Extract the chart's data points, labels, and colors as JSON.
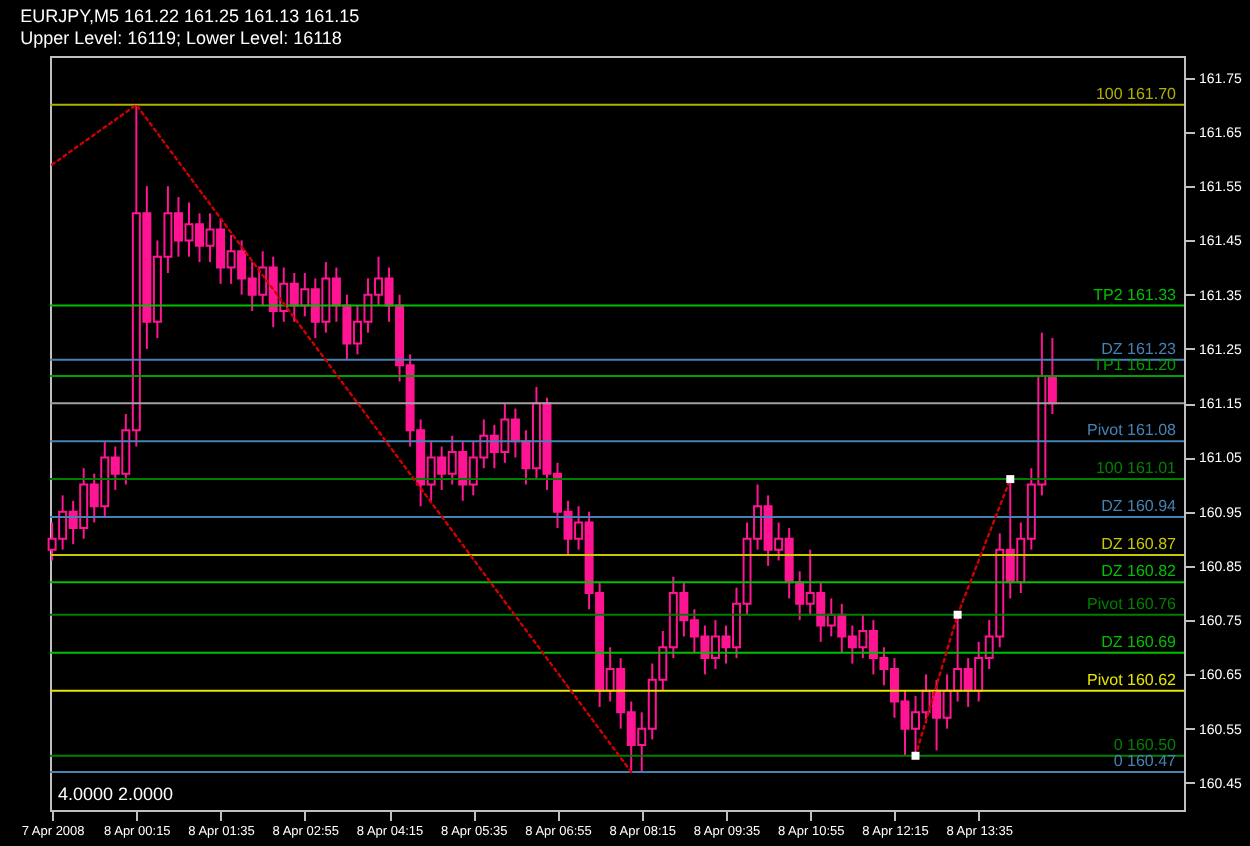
{
  "chart_data": {
    "type": "candlestick",
    "title": "EURJPY,M5  161.22 161.25 161.13 161.15",
    "subtitle": "Upper Level: 16119; Lower Level: 16118",
    "color": "#ff1493",
    "x": [
      "2008-04-07T22:55",
      "2008-04-07T23:05",
      "2008-04-07T23:15",
      "2008-04-07T23:25",
      "2008-04-07T23:35",
      "2008-04-07T23:45",
      "2008-04-07T23:55",
      "2008-04-08T00:05",
      "2008-04-08T00:15",
      "2008-04-08T00:25",
      "2008-04-08T00:35",
      "2008-04-08T00:45",
      "2008-04-08T00:55",
      "2008-04-08T01:05",
      "2008-04-08T01:15",
      "2008-04-08T01:25",
      "2008-04-08T01:35",
      "2008-04-08T01:45",
      "2008-04-08T01:55",
      "2008-04-08T02:05",
      "2008-04-08T02:15",
      "2008-04-08T02:25",
      "2008-04-08T02:35",
      "2008-04-08T02:45",
      "2008-04-08T02:55",
      "2008-04-08T03:05",
      "2008-04-08T03:15",
      "2008-04-08T03:25",
      "2008-04-08T03:35",
      "2008-04-08T03:45",
      "2008-04-08T03:55",
      "2008-04-08T04:05",
      "2008-04-08T04:15",
      "2008-04-08T04:25",
      "2008-04-08T04:35",
      "2008-04-08T04:45",
      "2008-04-08T04:55",
      "2008-04-08T05:05",
      "2008-04-08T05:15",
      "2008-04-08T05:25",
      "2008-04-08T05:35",
      "2008-04-08T05:45",
      "2008-04-08T05:55",
      "2008-04-08T06:05",
      "2008-04-08T06:15",
      "2008-04-08T06:25",
      "2008-04-08T06:35",
      "2008-04-08T06:45",
      "2008-04-08T06:55",
      "2008-04-08T07:05",
      "2008-04-08T07:15",
      "2008-04-08T07:25",
      "2008-04-08T07:35",
      "2008-04-08T07:45",
      "2008-04-08T07:55",
      "2008-04-08T08:05",
      "2008-04-08T08:15",
      "2008-04-08T08:25",
      "2008-04-08T08:35",
      "2008-04-08T08:45",
      "2008-04-08T08:55",
      "2008-04-08T09:05",
      "2008-04-08T09:15",
      "2008-04-08T09:25",
      "2008-04-08T09:35",
      "2008-04-08T09:45",
      "2008-04-08T09:55",
      "2008-04-08T10:05",
      "2008-04-08T10:15",
      "2008-04-08T10:25",
      "2008-04-08T10:35",
      "2008-04-08T10:45",
      "2008-04-08T10:55",
      "2008-04-08T11:05",
      "2008-04-08T11:15",
      "2008-04-08T11:25",
      "2008-04-08T11:35",
      "2008-04-08T11:45",
      "2008-04-08T11:55",
      "2008-04-08T12:05",
      "2008-04-08T12:15",
      "2008-04-08T12:25",
      "2008-04-08T12:35",
      "2008-04-08T12:45",
      "2008-04-08T12:55",
      "2008-04-08T13:05",
      "2008-04-08T13:15",
      "2008-04-08T13:25",
      "2008-04-08T13:35",
      "2008-04-08T13:45",
      "2008-04-08T13:55",
      "2008-04-08T14:05",
      "2008-04-08T14:15",
      "2008-04-08T14:25",
      "2008-04-08T14:35",
      "2008-04-08T14:45"
    ],
    "ohlc": [
      [
        160.88,
        160.93,
        160.86,
        160.9
      ],
      [
        160.9,
        160.98,
        160.88,
        160.95
      ],
      [
        160.95,
        160.97,
        160.89,
        160.92
      ],
      [
        160.92,
        161.03,
        160.9,
        161.0
      ],
      [
        161.0,
        161.02,
        160.93,
        160.96
      ],
      [
        160.96,
        161.08,
        160.94,
        161.05
      ],
      [
        161.05,
        161.07,
        160.99,
        161.02
      ],
      [
        161.02,
        161.13,
        161.0,
        161.1
      ],
      [
        161.1,
        161.7,
        161.07,
        161.5
      ],
      [
        161.5,
        161.55,
        161.25,
        161.3
      ],
      [
        161.3,
        161.45,
        161.27,
        161.42
      ],
      [
        161.42,
        161.55,
        161.39,
        161.5
      ],
      [
        161.5,
        161.53,
        161.42,
        161.45
      ],
      [
        161.45,
        161.52,
        161.42,
        161.48
      ],
      [
        161.48,
        161.5,
        161.41,
        161.44
      ],
      [
        161.44,
        161.5,
        161.41,
        161.47
      ],
      [
        161.47,
        161.49,
        161.37,
        161.4
      ],
      [
        161.4,
        161.46,
        161.37,
        161.43
      ],
      [
        161.43,
        161.45,
        161.35,
        161.38
      ],
      [
        161.38,
        161.41,
        161.32,
        161.35
      ],
      [
        161.35,
        161.43,
        161.33,
        161.4
      ],
      [
        161.4,
        161.42,
        161.29,
        161.32
      ],
      [
        161.32,
        161.4,
        161.3,
        161.37
      ],
      [
        161.37,
        161.39,
        161.3,
        161.33
      ],
      [
        161.33,
        161.39,
        161.31,
        161.36
      ],
      [
        161.36,
        161.38,
        161.27,
        161.3
      ],
      [
        161.3,
        161.41,
        161.28,
        161.38
      ],
      [
        161.38,
        161.4,
        161.3,
        161.33
      ],
      [
        161.33,
        161.35,
        161.23,
        161.26
      ],
      [
        161.26,
        161.33,
        161.24,
        161.3
      ],
      [
        161.3,
        161.38,
        161.28,
        161.35
      ],
      [
        161.35,
        161.42,
        161.33,
        161.38
      ],
      [
        161.38,
        161.4,
        161.3,
        161.33
      ],
      [
        161.33,
        161.35,
        161.19,
        161.22
      ],
      [
        161.22,
        161.24,
        161.07,
        161.1
      ],
      [
        161.1,
        161.12,
        160.96,
        161.0
      ],
      [
        161.0,
        161.08,
        160.97,
        161.05
      ],
      [
        161.05,
        161.07,
        160.99,
        161.02
      ],
      [
        161.02,
        161.09,
        161.0,
        161.06
      ],
      [
        161.06,
        161.08,
        160.97,
        161.0
      ],
      [
        161.0,
        161.08,
        160.98,
        161.05
      ],
      [
        161.05,
        161.12,
        161.03,
        161.09
      ],
      [
        161.09,
        161.11,
        161.03,
        161.06
      ],
      [
        161.06,
        161.15,
        161.04,
        161.12
      ],
      [
        161.12,
        161.14,
        161.05,
        161.08
      ],
      [
        161.08,
        161.1,
        161.0,
        161.03
      ],
      [
        161.03,
        161.18,
        161.01,
        161.15
      ],
      [
        161.15,
        161.16,
        160.99,
        161.02
      ],
      [
        161.02,
        161.04,
        160.92,
        160.95
      ],
      [
        160.95,
        160.97,
        160.87,
        160.9
      ],
      [
        160.9,
        160.96,
        160.88,
        160.93
      ],
      [
        160.93,
        160.95,
        160.77,
        160.8
      ],
      [
        160.8,
        160.82,
        160.59,
        160.62
      ],
      [
        160.62,
        160.7,
        160.6,
        160.66
      ],
      [
        160.66,
        160.68,
        160.55,
        160.58
      ],
      [
        160.58,
        160.6,
        160.47,
        160.52
      ],
      [
        160.52,
        160.58,
        160.47,
        160.55
      ],
      [
        160.55,
        160.67,
        160.53,
        160.64
      ],
      [
        160.64,
        160.73,
        160.62,
        160.7
      ],
      [
        160.7,
        160.83,
        160.68,
        160.8
      ],
      [
        160.8,
        160.82,
        160.72,
        160.75
      ],
      [
        160.75,
        160.77,
        160.69,
        160.72
      ],
      [
        160.72,
        160.74,
        160.65,
        160.68
      ],
      [
        160.68,
        160.75,
        160.66,
        160.72
      ],
      [
        160.72,
        160.74,
        160.67,
        160.7
      ],
      [
        160.7,
        160.81,
        160.68,
        160.78
      ],
      [
        160.78,
        160.93,
        160.76,
        160.9
      ],
      [
        160.9,
        161.0,
        160.88,
        160.96
      ],
      [
        160.96,
        160.98,
        160.85,
        160.88
      ],
      [
        160.88,
        160.93,
        160.86,
        160.9
      ],
      [
        160.9,
        160.92,
        160.79,
        160.82
      ],
      [
        160.82,
        160.84,
        160.75,
        160.78
      ],
      [
        160.78,
        160.88,
        160.76,
        160.8
      ],
      [
        160.8,
        160.82,
        160.71,
        160.74
      ],
      [
        160.74,
        160.79,
        160.72,
        160.76
      ],
      [
        160.76,
        160.78,
        160.69,
        160.72
      ],
      [
        160.72,
        160.74,
        160.67,
        160.7
      ],
      [
        160.7,
        160.76,
        160.68,
        160.73
      ],
      [
        160.73,
        160.75,
        160.65,
        160.68
      ],
      [
        160.68,
        160.7,
        160.63,
        160.66
      ],
      [
        160.66,
        160.68,
        160.57,
        160.6
      ],
      [
        160.6,
        160.62,
        160.5,
        160.55
      ],
      [
        160.55,
        160.61,
        160.5,
        160.58
      ],
      [
        160.58,
        160.65,
        160.56,
        160.62
      ],
      [
        160.62,
        160.64,
        160.51,
        160.57
      ],
      [
        160.57,
        160.65,
        160.55,
        160.62
      ],
      [
        160.62,
        160.76,
        160.6,
        160.66
      ],
      [
        160.66,
        160.68,
        160.59,
        160.62
      ],
      [
        160.62,
        160.71,
        160.6,
        160.68
      ],
      [
        160.68,
        160.75,
        160.66,
        160.72
      ],
      [
        160.72,
        160.91,
        160.7,
        160.88
      ],
      [
        160.88,
        161.01,
        160.79,
        160.82
      ],
      [
        160.82,
        160.93,
        160.8,
        160.9
      ],
      [
        160.9,
        161.03,
        160.88,
        161.0
      ],
      [
        161.0,
        161.28,
        160.98,
        161.2
      ],
      [
        161.2,
        161.27,
        161.13,
        161.15
      ]
    ],
    "series": [
      {
        "type": "line",
        "color": "#d00000",
        "x": [
          "2008-04-07T22:55",
          "2008-04-08T00:15",
          "2008-04-08T08:05"
        ],
        "values": [
          161.59,
          161.7,
          160.47
        ]
      },
      {
        "type": "line",
        "color": "#d00000",
        "marker": "square",
        "x": [
          "2008-04-08T12:35",
          "2008-04-08T13:15",
          "2008-04-08T14:05"
        ],
        "values": [
          160.5,
          160.76,
          161.01
        ]
      }
    ],
    "line_style": "dotted",
    "xlim": [
      "2008-04-07T22:53",
      "2008-04-08T16:50"
    ],
    "xticks": [
      {
        "value": "2008-04-07T22:55",
        "label": "7 Apr 2008"
      },
      {
        "value": "2008-04-08T00:15",
        "label": "8 Apr 00:15"
      },
      {
        "value": "2008-04-08T01:35",
        "label": "8 Apr 01:35"
      },
      {
        "value": "2008-04-08T02:55",
        "label": "8 Apr 02:55"
      },
      {
        "value": "2008-04-08T04:15",
        "label": "8 Apr 04:15"
      },
      {
        "value": "2008-04-08T05:35",
        "label": "8 Apr 05:35"
      },
      {
        "value": "2008-04-08T06:55",
        "label": "8 Apr 06:55"
      },
      {
        "value": "2008-04-08T08:15",
        "label": "8 Apr 08:15"
      },
      {
        "value": "2008-04-08T09:35",
        "label": "8 Apr 09:35"
      },
      {
        "value": "2008-04-08T10:55",
        "label": "8 Apr 10:55"
      },
      {
        "value": "2008-04-08T12:15",
        "label": "8 Apr 12:15"
      },
      {
        "value": "2008-04-08T13:35",
        "label": "8 Apr 13:35"
      }
    ],
    "ylim": [
      160.4,
      161.79
    ],
    "yticks": [
      161.75,
      161.65,
      161.55,
      161.45,
      161.35,
      161.25,
      161.15,
      161.05,
      160.95,
      160.85,
      160.75,
      160.65,
      160.55,
      160.45
    ],
    "ref_lines": [
      {
        "axis": "y",
        "value": 161.7,
        "label": "100  161.70",
        "color": "#b0b000"
      },
      {
        "axis": "y",
        "value": 161.33,
        "label": "TP2  161.33",
        "color": "#00c000"
      },
      {
        "axis": "y",
        "value": 161.23,
        "label": "DZ  161.23",
        "color": "#4682b4"
      },
      {
        "axis": "y",
        "value": 161.2,
        "label": "TP1  161.20",
        "color": "#00a000"
      },
      {
        "axis": "y",
        "value": 161.15,
        "color": "#a0a0a0"
      },
      {
        "axis": "y",
        "value": 161.08,
        "label": "Pivot  161.08",
        "color": "#4682b4"
      },
      {
        "axis": "y",
        "value": 161.01,
        "label": "100  161.01",
        "color": "#008000"
      },
      {
        "axis": "y",
        "value": 160.94,
        "label": "DZ  160.94",
        "color": "#4682b4"
      },
      {
        "axis": "y",
        "value": 160.87,
        "label": "DZ  160.87",
        "color": "#c8c800"
      },
      {
        "axis": "y",
        "value": 160.82,
        "label": "DZ  160.82",
        "color": "#00c000"
      },
      {
        "axis": "y",
        "value": 160.76,
        "label": "Pivot  160.76",
        "color": "#008000"
      },
      {
        "axis": "y",
        "value": 160.69,
        "label": "DZ  160.69",
        "color": "#00c000"
      },
      {
        "axis": "y",
        "value": 160.62,
        "label": "Pivot  160.62",
        "color": "#e6e600"
      },
      {
        "axis": "y",
        "value": 160.5,
        "label": "0  160.50",
        "color": "#008000"
      },
      {
        "axis": "y",
        "value": 160.47,
        "label": "0  160.47",
        "color": "#4682b4"
      }
    ],
    "annotations": [
      "4.0000 2.0000"
    ]
  }
}
